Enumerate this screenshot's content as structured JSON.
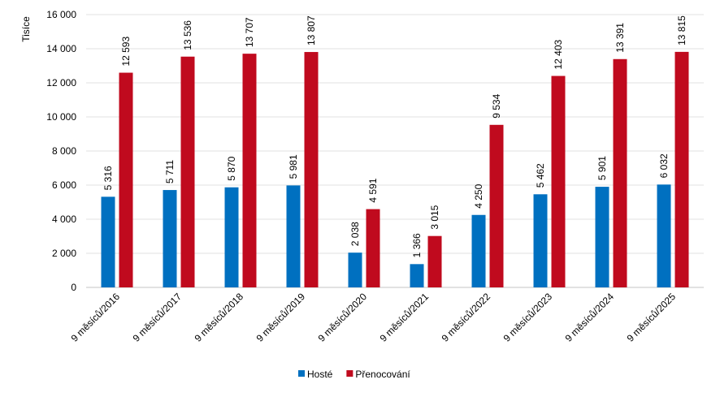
{
  "chart_data": {
    "type": "bar",
    "ylabel": "Tisíce",
    "ylim": [
      0,
      16000
    ],
    "yticks": [
      0,
      2000,
      4000,
      6000,
      8000,
      10000,
      12000,
      14000,
      16000
    ],
    "ytick_labels": [
      "0",
      "2 000",
      "4 000",
      "6 000",
      "8 000",
      "10 000",
      "12 000",
      "14 000",
      "16 000"
    ],
    "grid": true,
    "legend_position": "bottom",
    "categories": [
      "9 měsíců/2016",
      "9 měsíců/2017",
      "9 měsíců/2018",
      "9 měsíců/2019",
      "9 měsíců/2020",
      "9 měsíců/2021",
      "9 měsíců/2022",
      "9 měsíců/2023",
      "9 měsíců/2024",
      "9 měsíců/2025"
    ],
    "series": [
      {
        "name": "Hosté",
        "color": "#0070c0",
        "values": [
          5316,
          5711,
          5870,
          5981,
          2038,
          1366,
          4250,
          5462,
          5901,
          6032
        ],
        "labels": [
          "5 316",
          "5 711",
          "5 870",
          "5 981",
          "2 038",
          "1 366",
          "4 250",
          "5 462",
          "5 901",
          "6 032"
        ]
      },
      {
        "name": "Přenocování",
        "color": "#c00a1e",
        "values": [
          12593,
          13536,
          13707,
          13807,
          4591,
          3015,
          9534,
          12403,
          13391,
          13815
        ],
        "labels": [
          "12 593",
          "13 536",
          "13 707",
          "13 807",
          "4 591",
          "3 015",
          "9 534",
          "12 403",
          "13 391",
          "13 815"
        ]
      }
    ]
  }
}
